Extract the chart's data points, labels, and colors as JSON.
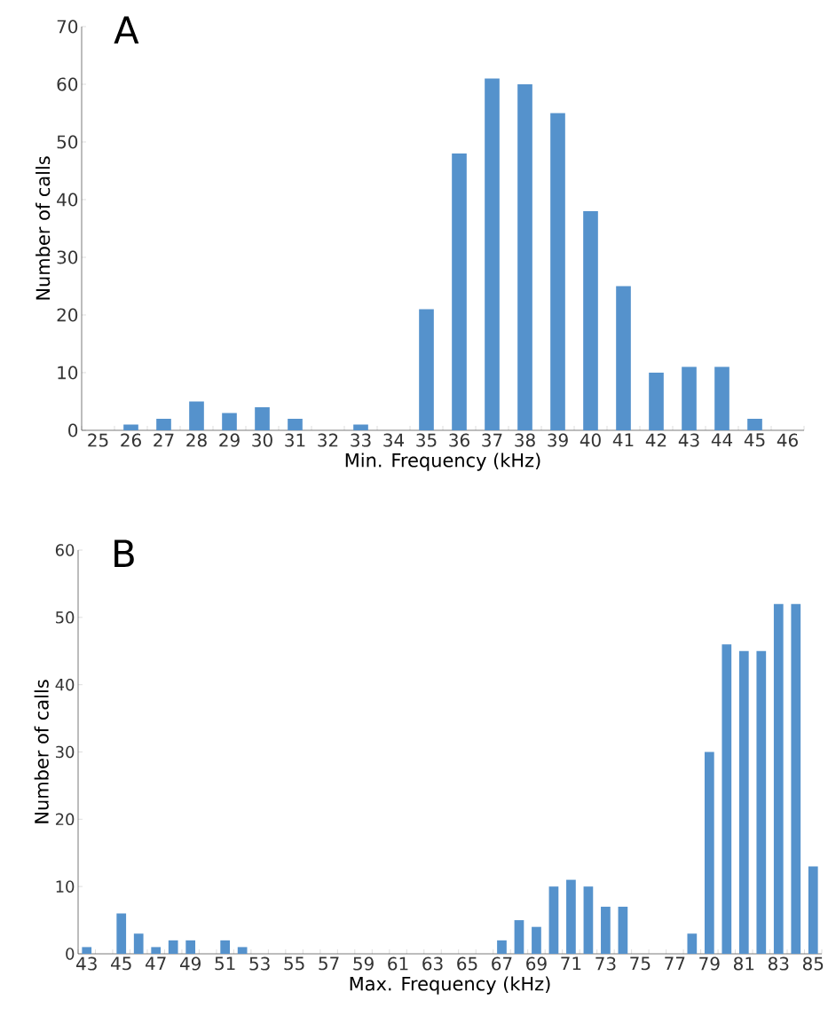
{
  "chart_data": [
    {
      "type": "bar",
      "title": "A",
      "xlabel": "Min. Frequency (kHz)",
      "ylabel": "Number of calls",
      "color": "#5592cc",
      "categories": [
        "25",
        "26",
        "27",
        "28",
        "29",
        "30",
        "31",
        "32",
        "33",
        "34",
        "35",
        "36",
        "37",
        "38",
        "39",
        "40",
        "41",
        "42",
        "43",
        "44",
        "45",
        "46"
      ],
      "values": [
        0,
        1,
        2,
        5,
        3,
        4,
        2,
        0,
        1,
        0,
        21,
        48,
        61,
        60,
        55,
        38,
        25,
        10,
        11,
        11,
        2,
        0
      ],
      "ylim": [
        0,
        70
      ],
      "yticks": [
        0,
        10,
        20,
        30,
        40,
        50,
        60,
        70
      ]
    },
    {
      "type": "bar",
      "title": "B",
      "xlabel": "Max. Frequency (kHz)",
      "ylabel": "Number of calls",
      "color": "#5592cc",
      "categories": [
        "43",
        null,
        "45",
        null,
        "47",
        null,
        "49",
        null,
        "51",
        null,
        "53",
        null,
        "55",
        null,
        "57",
        null,
        "59",
        null,
        "61",
        null,
        "63",
        null,
        "65",
        null,
        "67",
        null,
        "69",
        null,
        "71",
        null,
        "73",
        null,
        "75",
        null,
        "77",
        null,
        "79",
        null,
        "81",
        null,
        "83",
        null,
        "85"
      ],
      "values": [
        1,
        0,
        6,
        3,
        1,
        2,
        2,
        0,
        2,
        1,
        0,
        0,
        0,
        0,
        0,
        0,
        0,
        0,
        0,
        0,
        0,
        0,
        0,
        0,
        2,
        5,
        4,
        10,
        11,
        10,
        7,
        7,
        0,
        0,
        0,
        3,
        30,
        46,
        45,
        45,
        52,
        52,
        13
      ],
      "ylim": [
        0,
        60
      ],
      "yticks": [
        0,
        10,
        20,
        30,
        40,
        50,
        60
      ]
    }
  ]
}
